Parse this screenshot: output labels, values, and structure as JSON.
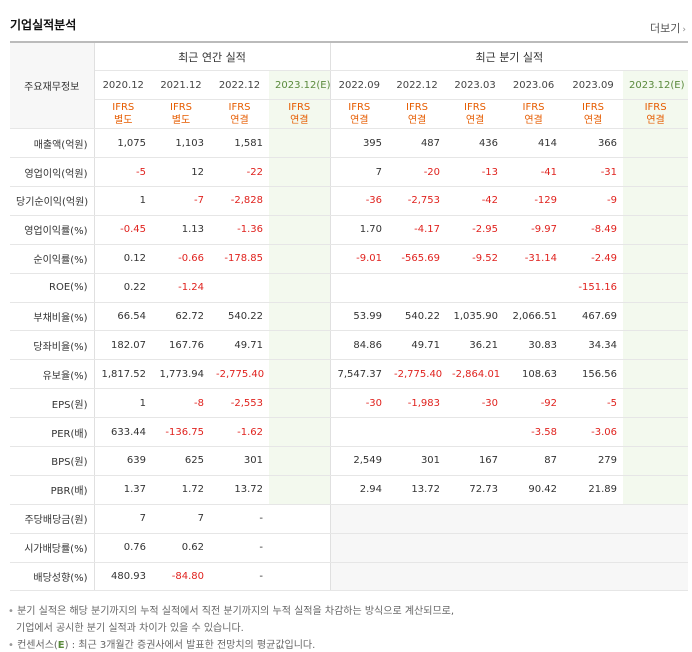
{
  "title": "기업실적분석",
  "more": {
    "label": "더보기",
    "arrow": "›"
  },
  "table": {
    "label_header": "주요재무정보",
    "group_annual": "최근 연간 실적",
    "group_quarter": "최근 분기 실적",
    "periods": [
      "2020.12",
      "2021.12",
      "2022.12",
      "2023.12(E)",
      "2022.09",
      "2022.12",
      "2023.03",
      "2023.06",
      "2023.09",
      "2023.12(E)"
    ],
    "ifrs_top": [
      "IFRS",
      "IFRS",
      "IFRS",
      "IFRS",
      "IFRS",
      "IFRS",
      "IFRS",
      "IFRS",
      "IFRS",
      "IFRS"
    ],
    "ifrs_bottom": [
      "별도",
      "별도",
      "연결",
      "연결",
      "연결",
      "연결",
      "연결",
      "연결",
      "연결",
      "연결"
    ],
    "rows": [
      {
        "label": "매출액(억원)",
        "values": [
          "1,075",
          "1,103",
          "1,581",
          "",
          "395",
          "487",
          "436",
          "414",
          "366",
          ""
        ]
      },
      {
        "label": "영업이익(억원)",
        "values": [
          "-5",
          "12",
          "-22",
          "",
          "7",
          "-20",
          "-13",
          "-41",
          "-31",
          ""
        ]
      },
      {
        "label": "당기순이익(억원)",
        "values": [
          "1",
          "-7",
          "-2,828",
          "",
          "-36",
          "-2,753",
          "-42",
          "-129",
          "-9",
          ""
        ]
      },
      {
        "label": "영업이익률(%)",
        "values": [
          "-0.45",
          "1.13",
          "-1.36",
          "",
          "1.70",
          "-4.17",
          "-2.95",
          "-9.97",
          "-8.49",
          ""
        ]
      },
      {
        "label": "순이익률(%)",
        "values": [
          "0.12",
          "-0.66",
          "-178.85",
          "",
          "-9.01",
          "-565.69",
          "-9.52",
          "-31.14",
          "-2.49",
          ""
        ]
      },
      {
        "label": "ROE(%)",
        "values": [
          "0.22",
          "-1.24",
          "",
          "",
          "",
          "",
          "",
          "",
          "-151.16",
          ""
        ]
      },
      {
        "label": "부채비율(%)",
        "values": [
          "66.54",
          "62.72",
          "540.22",
          "",
          "53.99",
          "540.22",
          "1,035.90",
          "2,066.51",
          "467.69",
          ""
        ]
      },
      {
        "label": "당좌비율(%)",
        "values": [
          "182.07",
          "167.76",
          "49.71",
          "",
          "84.86",
          "49.71",
          "36.21",
          "30.83",
          "34.34",
          ""
        ]
      },
      {
        "label": "유보율(%)",
        "values": [
          "1,817.52",
          "1,773.94",
          "-2,775.40",
          "",
          "7,547.37",
          "-2,775.40",
          "-2,864.01",
          "108.63",
          "156.56",
          ""
        ]
      },
      {
        "label": "EPS(원)",
        "values": [
          "1",
          "-8",
          "-2,553",
          "",
          "-30",
          "-1,983",
          "-30",
          "-92",
          "-5",
          ""
        ]
      },
      {
        "label": "PER(배)",
        "values": [
          "633.44",
          "-136.75",
          "-1.62",
          "",
          "",
          "",
          "",
          "-3.58",
          "-3.06",
          ""
        ]
      },
      {
        "label": "BPS(원)",
        "values": [
          "639",
          "625",
          "301",
          "",
          "2,549",
          "301",
          "167",
          "87",
          "279",
          ""
        ]
      },
      {
        "label": "PBR(배)",
        "values": [
          "1.37",
          "1.72",
          "13.72",
          "",
          "2.94",
          "13.72",
          "72.73",
          "90.42",
          "21.89",
          ""
        ]
      },
      {
        "label": "주당배당금(원)",
        "values": [
          "7",
          "7",
          "-",
          "",
          "",
          "",
          "",
          "",
          "",
          ""
        ],
        "quarter_gray": true
      },
      {
        "label": "시가배당률(%)",
        "values": [
          "0.76",
          "0.62",
          "-",
          "",
          "",
          "",
          "",
          "",
          "",
          ""
        ],
        "quarter_gray": true
      },
      {
        "label": "배당성향(%)",
        "values": [
          "480.93",
          "-84.80",
          "-",
          "",
          "",
          "",
          "",
          "",
          "",
          ""
        ],
        "quarter_gray": true
      }
    ]
  },
  "notes": {
    "line1": "분기 실적은 해당 분기까지의 누적 실적에서 직전 분기까지의 누적 실적을 차감하는 방식으로 계산되므로,",
    "line2": "기업에서 공시한 분기 실적과 차이가 있을 수 있습니다.",
    "line3_prefix": "컨센서스(",
    "line3_e": "E",
    "line3_suffix": ") : 최근 3개월간 증권사에서 발표한 전망치의 평균값입니다.",
    "mark": "•"
  },
  "colors": {
    "negative": "#e0231f",
    "ifrs": "#e65c00",
    "estimate_bg": "#f3f9ee",
    "estimate_text": "#5a8a3c"
  }
}
